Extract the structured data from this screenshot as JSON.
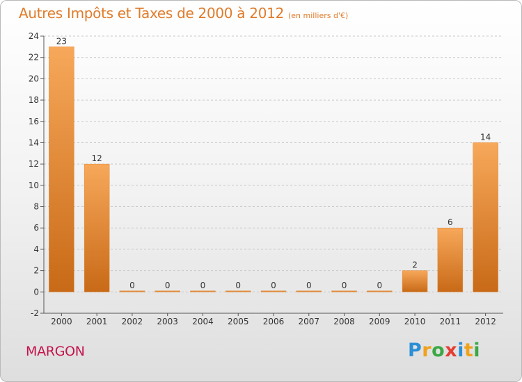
{
  "title": "Autres Impôts et Taxes de 2000 à 2012",
  "subtitle": "(en milliers d'€)",
  "place": "MARGON",
  "logo": {
    "text": "Proxiti",
    "letters": [
      {
        "ch": "P",
        "color": "#2a8fd6"
      },
      {
        "ch": "r",
        "color": "#f0a21c"
      },
      {
        "ch": "o",
        "color": "#3aa845"
      },
      {
        "ch": "x",
        "color": "#e53d34"
      },
      {
        "ch": "i",
        "color": "#2a8fd6"
      },
      {
        "ch": "t",
        "color": "#f0a21c"
      },
      {
        "ch": "i",
        "color": "#3aa845"
      }
    ]
  },
  "colors": {
    "bar_light": "#f7a85a",
    "bar_dark": "#c86a17",
    "title": "#e07b2a",
    "place": "#c4144c",
    "grid": "#c8c8c8"
  },
  "chart_data": {
    "type": "bar",
    "categories": [
      "2000",
      "2001",
      "2002",
      "2003",
      "2004",
      "2005",
      "2006",
      "2007",
      "2008",
      "2009",
      "2010",
      "2011",
      "2012"
    ],
    "values": [
      23,
      12,
      0,
      0,
      0,
      0,
      0,
      0,
      0,
      0,
      2,
      6,
      14
    ],
    "title": "Autres Impôts et Taxes de 2000 à 2012",
    "subtitle": "(en milliers d'€)",
    "xlabel": "",
    "ylabel": "",
    "ylim": [
      -2,
      24
    ],
    "yticks": [
      -2,
      0,
      2,
      4,
      6,
      8,
      10,
      12,
      14,
      16,
      18,
      20,
      22,
      24
    ],
    "grid": "horizontal-dashed",
    "legend": "none"
  }
}
